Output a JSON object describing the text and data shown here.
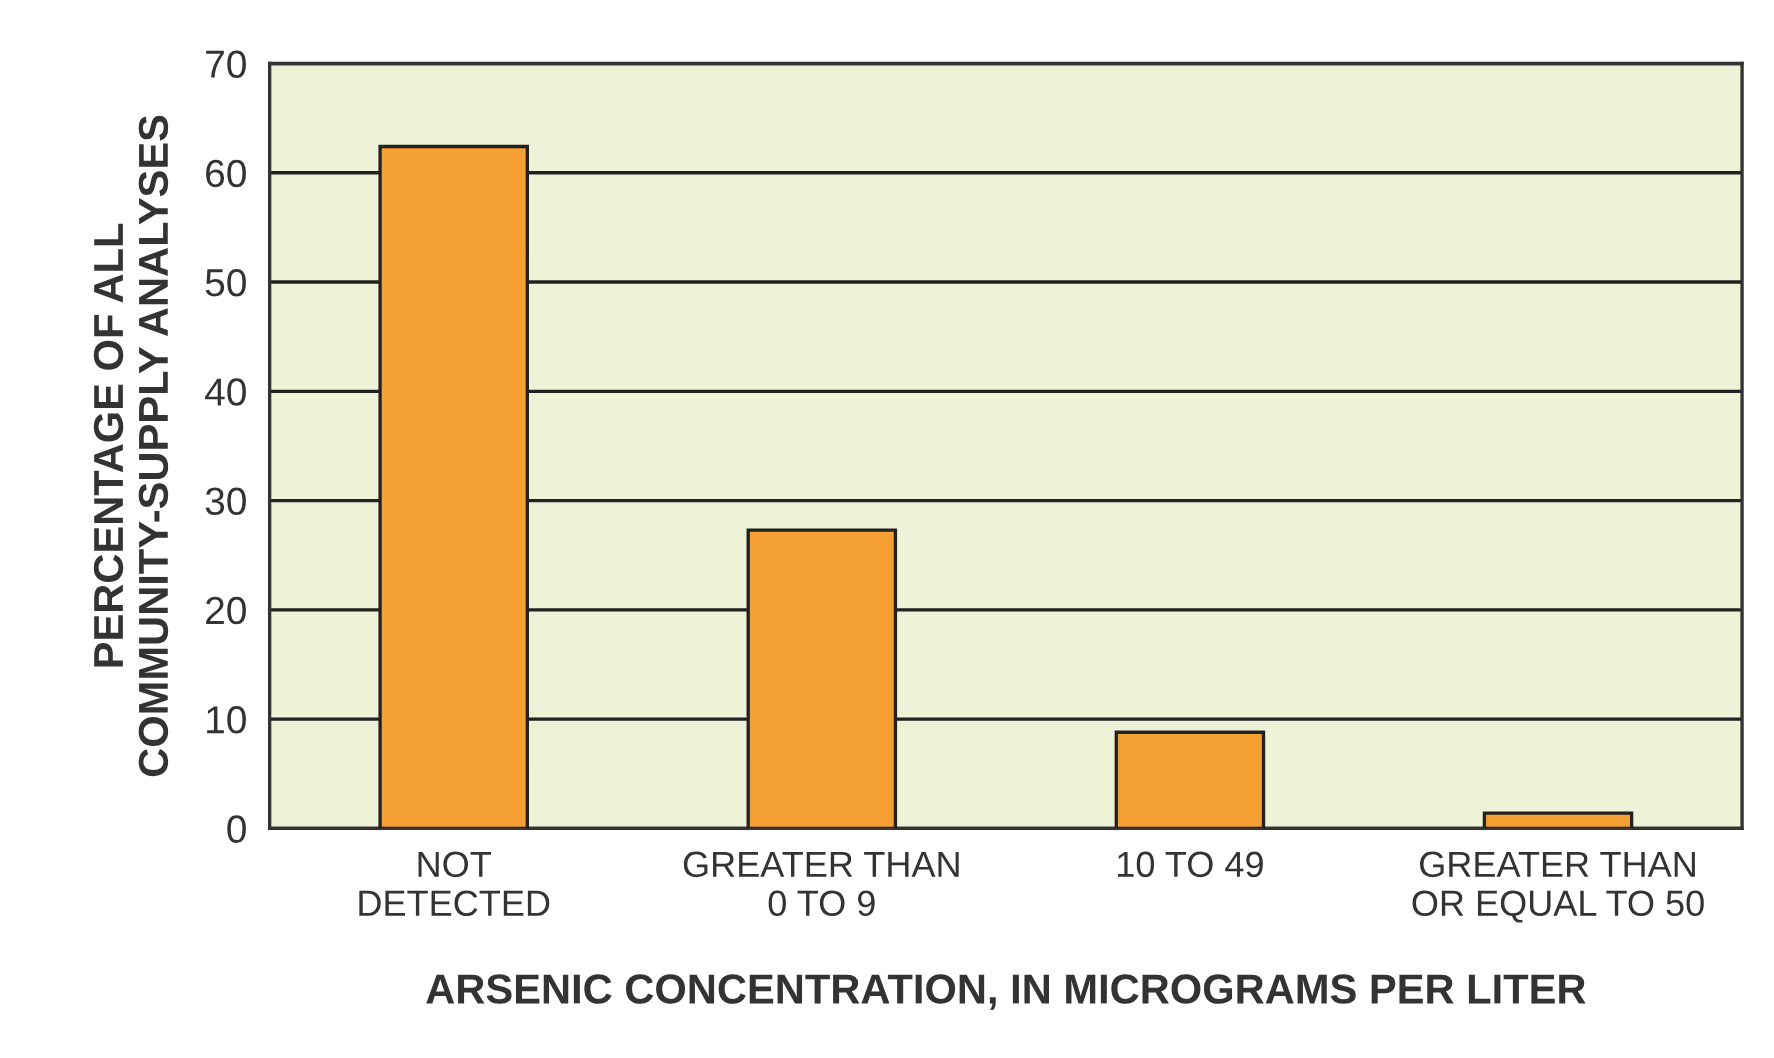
{
  "chart_data": {
    "type": "bar",
    "xlabel": "ARSENIC CONCENTRATION, IN MICROGRAMS PER LITER",
    "ylabel": "PERCENTAGE OF ALL\nCOMMUNITY-SUPPLY ANALYSES",
    "categories": [
      "NOT\nDETECTED",
      "GREATER THAN\n0 TO 9",
      "10 TO 49",
      "GREATER THAN\nOR EQUAL TO 50"
    ],
    "values": [
      62.4,
      27.3,
      8.8,
      1.4
    ],
    "color": "#f5a033",
    "ylim": [
      0,
      70
    ],
    "yticks": [
      0,
      10,
      20,
      30,
      40,
      50,
      60,
      70
    ],
    "grid": "y"
  }
}
